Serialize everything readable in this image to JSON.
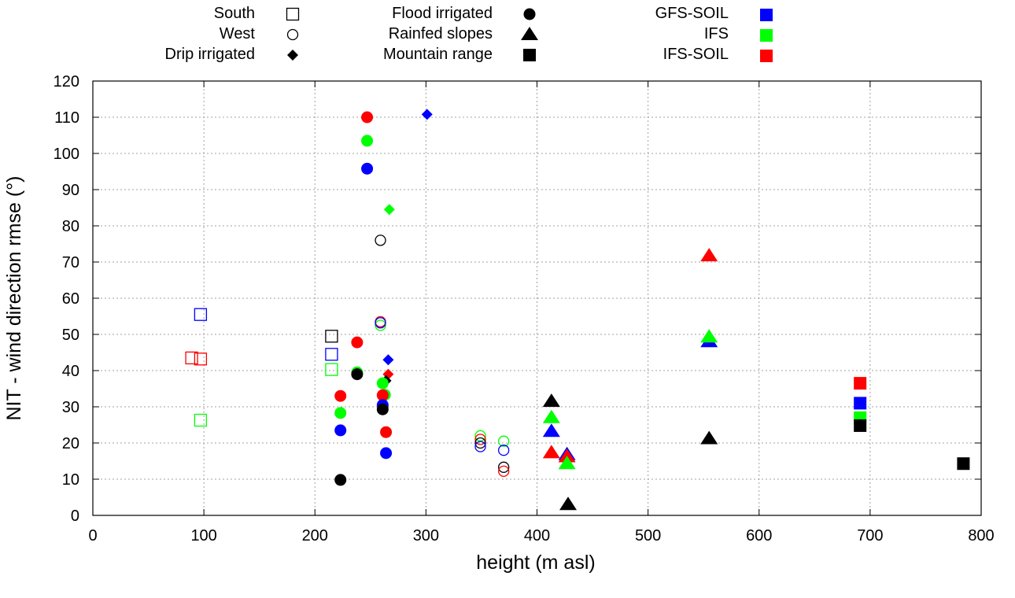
{
  "chart_data": {
    "type": "scatter",
    "title": "",
    "xlabel": "height (m asl)",
    "ylabel": "NIT - wind direction rmse (°)",
    "xlim": [
      0,
      800
    ],
    "ylim": [
      0,
      120
    ],
    "xticks": [
      0,
      100,
      200,
      300,
      400,
      500,
      600,
      700,
      800
    ],
    "yticks": [
      0,
      10,
      20,
      30,
      40,
      50,
      60,
      70,
      80,
      90,
      100,
      110,
      120
    ],
    "grid": true,
    "legend_location": "top, outside plot",
    "legend": {
      "shapes": [
        {
          "label": "South",
          "marker": "open-square"
        },
        {
          "label": "West",
          "marker": "open-circle"
        },
        {
          "label": "Drip irrigated",
          "marker": "diamond"
        },
        {
          "label": "Flood irrigated",
          "marker": "circle"
        },
        {
          "label": "Rainfed slopes",
          "marker": "triangle"
        },
        {
          "label": "Mountain range",
          "marker": "square"
        }
      ],
      "models": [
        {
          "label": "GFS-SOIL",
          "color": "#0000ff"
        },
        {
          "label": "IFS",
          "color": "#00ff00"
        },
        {
          "label": "IFS-SOIL",
          "color": "#ff0000"
        }
      ]
    },
    "colors": {
      "black": "#000000",
      "GFS-SOIL": "#0000ff",
      "IFS": "#00ff00",
      "IFS-SOIL": "#ff0000"
    },
    "points": [
      {
        "marker": "open-square",
        "color": "#0000ff",
        "x": 97,
        "y": 55.5
      },
      {
        "marker": "open-square",
        "color": "#ff0000",
        "x": 89,
        "y": 43.5
      },
      {
        "marker": "open-square",
        "color": "#ff0000",
        "x": 97,
        "y": 43.2
      },
      {
        "marker": "open-square",
        "color": "#00ff00",
        "x": 97,
        "y": 26.3
      },
      {
        "marker": "open-square",
        "color": "#000000",
        "x": 215,
        "y": 49.5
      },
      {
        "marker": "open-square",
        "color": "#0000ff",
        "x": 215,
        "y": 44.5
      },
      {
        "marker": "open-square",
        "color": "#00ff00",
        "x": 215,
        "y": 40.3
      },
      {
        "marker": "open-circle",
        "color": "#000000",
        "x": 259,
        "y": 76
      },
      {
        "marker": "open-circle",
        "color": "#00ff00",
        "x": 259,
        "y": 52.5
      },
      {
        "marker": "open-circle",
        "color": "#ff0000",
        "x": 259,
        "y": 53.5
      },
      {
        "marker": "open-circle",
        "color": "#0000ff",
        "x": 259,
        "y": 53.2
      },
      {
        "marker": "open-circle",
        "color": "#00ff00",
        "x": 349,
        "y": 22
      },
      {
        "marker": "open-circle",
        "color": "#ff0000",
        "x": 349,
        "y": 21
      },
      {
        "marker": "open-circle",
        "color": "#000000",
        "x": 349,
        "y": 20
      },
      {
        "marker": "open-circle",
        "color": "#0000ff",
        "x": 349,
        "y": 19
      },
      {
        "marker": "open-circle",
        "color": "#00ff00",
        "x": 370,
        "y": 20.5
      },
      {
        "marker": "open-circle",
        "color": "#0000ff",
        "x": 370,
        "y": 18
      },
      {
        "marker": "open-circle",
        "color": "#000000",
        "x": 370,
        "y": 13.3
      },
      {
        "marker": "open-circle",
        "color": "#ff0000",
        "x": 370,
        "y": 12.2
      },
      {
        "marker": "diamond",
        "color": "#0000ff",
        "x": 301,
        "y": 110.8
      },
      {
        "marker": "diamond",
        "color": "#00ff00",
        "x": 267,
        "y": 84.5
      },
      {
        "marker": "diamond",
        "color": "#0000ff",
        "x": 266,
        "y": 43
      },
      {
        "marker": "diamond",
        "color": "#ff0000",
        "x": 266,
        "y": 39
      },
      {
        "marker": "diamond",
        "color": "#000000",
        "x": 264,
        "y": 37.2
      },
      {
        "marker": "circle",
        "color": "#ff0000",
        "x": 247,
        "y": 110
      },
      {
        "marker": "circle",
        "color": "#00ff00",
        "x": 247,
        "y": 103.5
      },
      {
        "marker": "circle",
        "color": "#0000ff",
        "x": 247,
        "y": 95.8
      },
      {
        "marker": "circle",
        "color": "#ff0000",
        "x": 238,
        "y": 47.8
      },
      {
        "marker": "circle",
        "color": "#00ff00",
        "x": 238,
        "y": 39.5
      },
      {
        "marker": "circle",
        "color": "#000000",
        "x": 238,
        "y": 39
      },
      {
        "marker": "circle",
        "color": "#ff0000",
        "x": 223,
        "y": 33
      },
      {
        "marker": "circle",
        "color": "#00ff00",
        "x": 223,
        "y": 28.3
      },
      {
        "marker": "circle",
        "color": "#0000ff",
        "x": 223,
        "y": 23.5
      },
      {
        "marker": "circle",
        "color": "#000000",
        "x": 223,
        "y": 9.8
      },
      {
        "marker": "circle",
        "color": "#00ff00",
        "x": 261,
        "y": 36.5
      },
      {
        "marker": "circle",
        "color": "#00ff00",
        "x": 263,
        "y": 33.3
      },
      {
        "marker": "circle",
        "color": "#ff0000",
        "x": 261,
        "y": 33.2
      },
      {
        "marker": "circle",
        "color": "#0000ff",
        "x": 261,
        "y": 30.5
      },
      {
        "marker": "circle",
        "color": "#000000",
        "x": 261,
        "y": 29.3
      },
      {
        "marker": "circle",
        "color": "#ff0000",
        "x": 264,
        "y": 23
      },
      {
        "marker": "circle",
        "color": "#0000ff",
        "x": 264,
        "y": 17.2
      },
      {
        "marker": "triangle",
        "color": "#ff0000",
        "x": 555,
        "y": 71.7
      },
      {
        "marker": "triangle",
        "color": "#0000ff",
        "x": 555,
        "y": 48
      },
      {
        "marker": "triangle",
        "color": "#00ff00",
        "x": 555,
        "y": 49.3
      },
      {
        "marker": "triangle",
        "color": "#000000",
        "x": 555,
        "y": 21.2
      },
      {
        "marker": "triangle",
        "color": "#000000",
        "x": 413,
        "y": 31.5
      },
      {
        "marker": "triangle",
        "color": "#00ff00",
        "x": 413,
        "y": 27
      },
      {
        "marker": "triangle",
        "color": "#0000ff",
        "x": 413,
        "y": 23.2
      },
      {
        "marker": "triangle",
        "color": "#ff0000",
        "x": 413,
        "y": 17.3
      },
      {
        "marker": "triangle",
        "color": "#0000ff",
        "x": 427,
        "y": 16.8
      },
      {
        "marker": "triangle",
        "color": "#ff0000",
        "x": 427,
        "y": 16.2
      },
      {
        "marker": "triangle",
        "color": "#00ff00",
        "x": 427,
        "y": 14.3
      },
      {
        "marker": "triangle",
        "color": "#000000",
        "x": 428,
        "y": 3
      },
      {
        "marker": "square",
        "color": "#ff0000",
        "x": 691,
        "y": 36.5
      },
      {
        "marker": "square",
        "color": "#0000ff",
        "x": 691,
        "y": 31
      },
      {
        "marker": "square",
        "color": "#00ff00",
        "x": 691,
        "y": 27
      },
      {
        "marker": "square",
        "color": "#000000",
        "x": 691,
        "y": 24.8
      },
      {
        "marker": "square",
        "color": "#000000",
        "x": 784,
        "y": 14.3
      }
    ]
  }
}
